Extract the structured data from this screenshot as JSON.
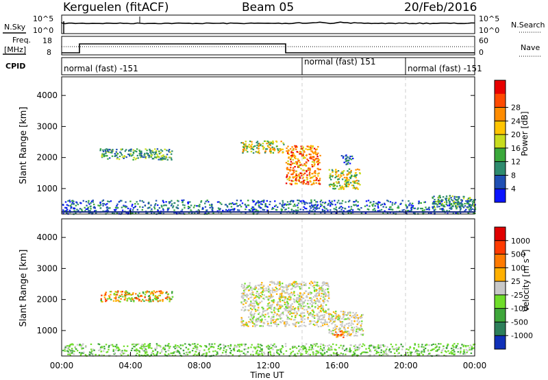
{
  "header": {
    "station": "Kerguelen (fitACF)",
    "beam": "Beam 05",
    "date": "20/Feb/2016"
  },
  "top_panels": {
    "nsky_label": "N.Sky",
    "nsky_ticks": [
      "10^5",
      "10^0"
    ],
    "nsearch_label": "N.Search",
    "nsearch_ticks": [
      "10^5",
      "10^0"
    ],
    "freq_label_1": "Freq.",
    "freq_label_2": "[MHz]",
    "freq_ticks": [
      "18",
      "8"
    ],
    "nave_label": "Nave",
    "nave_ticks": [
      "60",
      "0"
    ],
    "cpid_label": "CPID",
    "cpid_segments": [
      {
        "label": "normal (fast) -151",
        "start_h": 0,
        "end_h": 14
      },
      {
        "label": "normal (fast) 151",
        "start_h": 14,
        "end_h": 20
      },
      {
        "label": "normal (fast) -151",
        "start_h": 20,
        "end_h": 24
      }
    ]
  },
  "chart_data": [
    {
      "type": "heatmap",
      "panel": "power",
      "ylabel": "Slant Range [km]",
      "yticks": [
        "1000",
        "2000",
        "3000",
        "4000"
      ],
      "ylim": [
        180,
        4600
      ],
      "xlim": [
        0,
        24
      ],
      "colorbar_label": "Power [dB]",
      "colorbar_ticks": [
        "4",
        "8",
        "12",
        "16",
        "20",
        "24",
        "28"
      ],
      "colorbar_colors": [
        "#0a14ff",
        "#1f4fb3",
        "#2e8b6e",
        "#3aa83a",
        "#c8dc1e",
        "#ffc400",
        "#ff8c00",
        "#ff4a00",
        "#e80000"
      ],
      "scatter_regions": [
        {
          "t0": 2.2,
          "t1": 6.4,
          "r0": 1950,
          "r1": 2300,
          "level": "mid"
        },
        {
          "t0": 10.4,
          "t1": 12.9,
          "r0": 2150,
          "r1": 2550,
          "level": "high"
        },
        {
          "t0": 13.0,
          "t1": 15.0,
          "r0": 1150,
          "r1": 2400,
          "level": "peak"
        },
        {
          "t0": 15.5,
          "t1": 17.3,
          "r0": 1000,
          "r1": 1650,
          "level": "high"
        },
        {
          "t0": 16.2,
          "t1": 16.9,
          "r0": 1800,
          "r1": 2100,
          "level": "low"
        },
        {
          "t0": 0.0,
          "t1": 24.0,
          "r0": 200,
          "r1": 650,
          "level": "low"
        },
        {
          "t0": 21.5,
          "t1": 24.0,
          "r0": 400,
          "r1": 800,
          "level": "mid"
        }
      ]
    },
    {
      "type": "heatmap",
      "panel": "velocity",
      "ylabel": "Slant Range [km]",
      "yticks": [
        "1000",
        "2000",
        "3000",
        "4000"
      ],
      "ylim": [
        180,
        4600
      ],
      "xlim": [
        0,
        24
      ],
      "colorbar_label": "Velocity [m s",
      "colorbar_label_exp": "-1",
      "colorbar_label_end": "]",
      "colorbar_ticks": [
        "1000",
        "500",
        "100",
        "25",
        "-25",
        "-100",
        "-500",
        "-1000"
      ],
      "colorbar_colors": [
        "#1030b8",
        "#2d7f5a",
        "#3ea63a",
        "#6fdd2a",
        "#c8c8c8",
        "#ffb000",
        "#ff7a00",
        "#ff3a00",
        "#e00000"
      ],
      "scatter_regions": [
        {
          "t0": 2.2,
          "t1": 6.4,
          "r0": 1950,
          "r1": 2300,
          "level": "mixed"
        },
        {
          "t0": 10.4,
          "t1": 15.5,
          "r0": 1150,
          "r1": 2600,
          "level": "gray"
        },
        {
          "t0": 15.5,
          "t1": 17.5,
          "r0": 850,
          "r1": 1650,
          "level": "gray"
        },
        {
          "t0": 15.8,
          "t1": 16.4,
          "r0": 800,
          "r1": 1050,
          "level": "orange"
        },
        {
          "t0": 0.0,
          "t1": 24.0,
          "r0": 200,
          "r1": 600,
          "level": "green"
        }
      ]
    }
  ],
  "xaxis": {
    "ticks": [
      "00:00",
      "04:00",
      "08:00",
      "12:00",
      "16:00",
      "20:00",
      "00:00"
    ],
    "label": "Time UT"
  }
}
